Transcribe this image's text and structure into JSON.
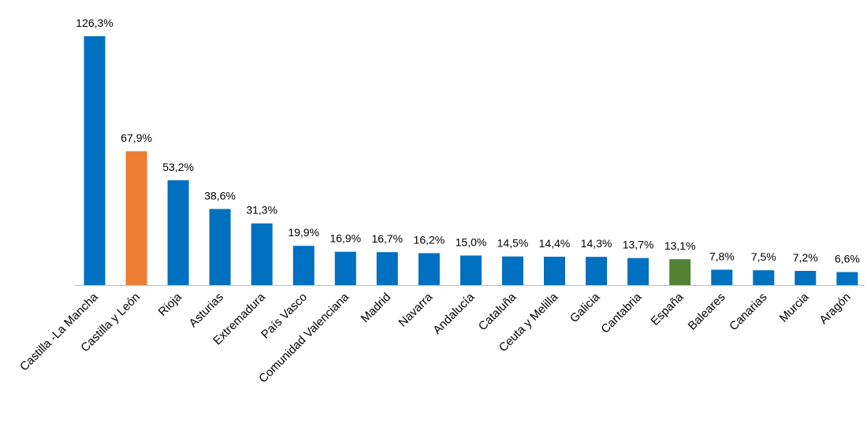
{
  "chart_data": {
    "type": "bar",
    "title": "",
    "xlabel": "",
    "ylabel": "",
    "ylim": [
      0,
      126.3
    ],
    "grid": false,
    "legend": "none",
    "categories": [
      "Castilla -La Mancha",
      "Castilla y León",
      "Rioja",
      "Asturias",
      "Extremadura",
      "País Vasco",
      "Comunidad Valenciana",
      "Madrid",
      "Navarra",
      "Andalucía",
      "Cataluña",
      "Ceuta y Melilla",
      "Galicia",
      "Cantabria",
      "España",
      "Baleares",
      "Canarias",
      "Murcia",
      "Aragón"
    ],
    "values": [
      126.3,
      67.9,
      53.2,
      38.6,
      31.3,
      19.9,
      16.9,
      16.7,
      16.2,
      15.0,
      14.5,
      14.4,
      14.3,
      13.7,
      13.1,
      7.8,
      7.5,
      7.2,
      6.6
    ],
    "value_labels": [
      "126,3%",
      "67,9%",
      "53,2%",
      "38,6%",
      "31,3%",
      "19,9%",
      "16,9%",
      "16,7%",
      "16,2%",
      "15,0%",
      "14,5%",
      "14,4%",
      "14,3%",
      "13,7%",
      "13,1%",
      "7,8%",
      "7,5%",
      "7,2%",
      "6,6%"
    ],
    "colors": {
      "default": "#0070c0",
      "highlight": {
        "Castilla y León": "#ed7d31",
        "España": "#548235"
      },
      "axis": "#bfbfbf"
    }
  }
}
